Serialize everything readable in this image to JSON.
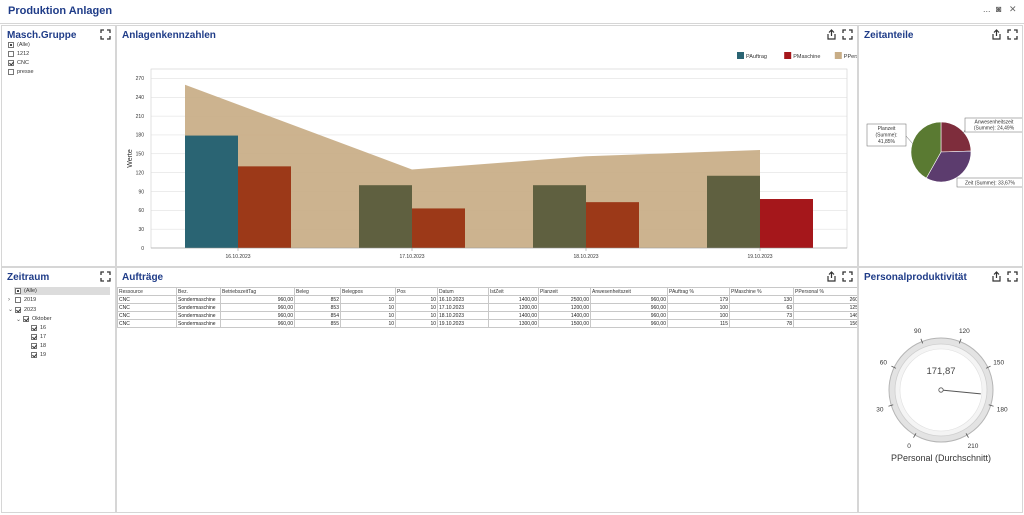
{
  "app": {
    "title": "Produktion Anlagen",
    "controls": [
      "...",
      "◙",
      "✕"
    ]
  },
  "panels": {
    "masch_gruppe": "Masch.Gruppe",
    "anlagenkennzahlen": "Anlagenkennzahlen",
    "zeitanteile": "Zeitanteile",
    "zeitraum": "Zeitraum",
    "auftraege": "Aufträge",
    "personalproduktivitaet": "Personalproduktivität"
  },
  "masch_gruppe": {
    "items": [
      {
        "label": "(Alle)",
        "state": "partial"
      },
      {
        "label": "1212",
        "state": "unchecked"
      },
      {
        "label": "CNC",
        "state": "checked"
      },
      {
        "label": "presse",
        "state": "unchecked"
      }
    ]
  },
  "zeitraum": {
    "items": [
      {
        "label": "(Alle)",
        "state": "partial",
        "arrow": "",
        "level": 0,
        "selected": true
      },
      {
        "label": "2019",
        "state": "unchecked",
        "arrow": "›",
        "level": 0
      },
      {
        "label": "2023",
        "state": "checked",
        "arrow": "⌄",
        "level": 0
      },
      {
        "label": "Oktober",
        "state": "checked",
        "arrow": "⌄",
        "level": 1
      },
      {
        "label": "16",
        "state": "checked",
        "arrow": "",
        "level": 2
      },
      {
        "label": "17",
        "state": "checked",
        "arrow": "",
        "level": 2
      },
      {
        "label": "18",
        "state": "checked",
        "arrow": "",
        "level": 2
      },
      {
        "label": "19",
        "state": "checked",
        "arrow": "",
        "level": 2
      }
    ]
  },
  "chart_data": {
    "type": "bar",
    "ylabel": "Werte",
    "ylim": [
      0,
      285
    ],
    "yticks": [
      0,
      30,
      60,
      90,
      120,
      150,
      180,
      210,
      240,
      270
    ],
    "categories": [
      "16.10.2023",
      "17.10.2023",
      "18.10.2023",
      "19.10.2023"
    ],
    "legend_position": "top-right",
    "grid": true,
    "series": [
      {
        "name": "PAuftrag",
        "type": "bar",
        "values": [
          179,
          100,
          100,
          115
        ],
        "colors": [
          "#2a6473",
          "#5f6040",
          "#5f6040",
          "#5f6040"
        ],
        "legend_color": "#2a6473"
      },
      {
        "name": "PMaschine",
        "type": "bar",
        "values": [
          130,
          63,
          73,
          78
        ],
        "colors": [
          "#9c3918",
          "#9c3918",
          "#9c3918",
          "#a5171b"
        ],
        "legend_color": "#a5171b"
      },
      {
        "name": "PPersonal",
        "type": "area",
        "values": [
          260,
          125,
          146,
          156
        ],
        "color": "#c8ad86"
      }
    ]
  },
  "pie": {
    "slices": [
      {
        "label": "Planzeit (Summe): 41,85%",
        "value": 41.85,
        "color": "#5a7a32"
      },
      {
        "label": "Zeit (Summe): 33,67%",
        "value": 33.67,
        "color": "#5c3c6e"
      },
      {
        "label": "Anwesenheitszeit (Summe): 24,49%",
        "value": 24.49,
        "color": "#7e2d3c"
      }
    ],
    "labels": {
      "planzeit": [
        "Planzeit",
        "(Summe):",
        "41,85%"
      ],
      "zeit": "Zeit (Summe): 33,67%",
      "anwesenheit": [
        "Anwesenheitszeit",
        "(Summe): 24,49%"
      ]
    }
  },
  "table": {
    "columns": [
      "Ressource",
      "Bez.",
      "BetriebszeitTag",
      "Beleg",
      "Belegpos",
      "Pos",
      "Datum",
      "IstZeit",
      "Planzeit",
      "Anwesenheitszeit",
      "PAuftrag %",
      "PMaschine %",
      "PPersonal %"
    ],
    "rows": [
      [
        "CNC",
        "Sondermaschine",
        "960,00",
        "852",
        "10",
        "10",
        "16.10.2023",
        "1400,00",
        "2500,00",
        "960,00",
        "179",
        "130",
        "260"
      ],
      [
        "CNC",
        "Sondermaschine",
        "960,00",
        "853",
        "10",
        "10",
        "17.10.2023",
        "1200,00",
        "1200,00",
        "960,00",
        "100",
        "63",
        "125"
      ],
      [
        "CNC",
        "Sondermaschine",
        "960,00",
        "854",
        "10",
        "10",
        "18.10.2023",
        "1400,00",
        "1400,00",
        "960,00",
        "100",
        "73",
        "146"
      ],
      [
        "CNC",
        "Sondermaschine",
        "960,00",
        "855",
        "10",
        "10",
        "19.10.2023",
        "1300,00",
        "1500,00",
        "960,00",
        "115",
        "78",
        "156"
      ]
    ]
  },
  "gauge": {
    "value": 171.87,
    "value_text": "171,87",
    "min": 0,
    "max": 210,
    "ticks": [
      "0",
      "30",
      "60",
      "90",
      "120",
      "150",
      "180",
      "210"
    ],
    "caption": "PPersonal (Durchschnitt)"
  }
}
